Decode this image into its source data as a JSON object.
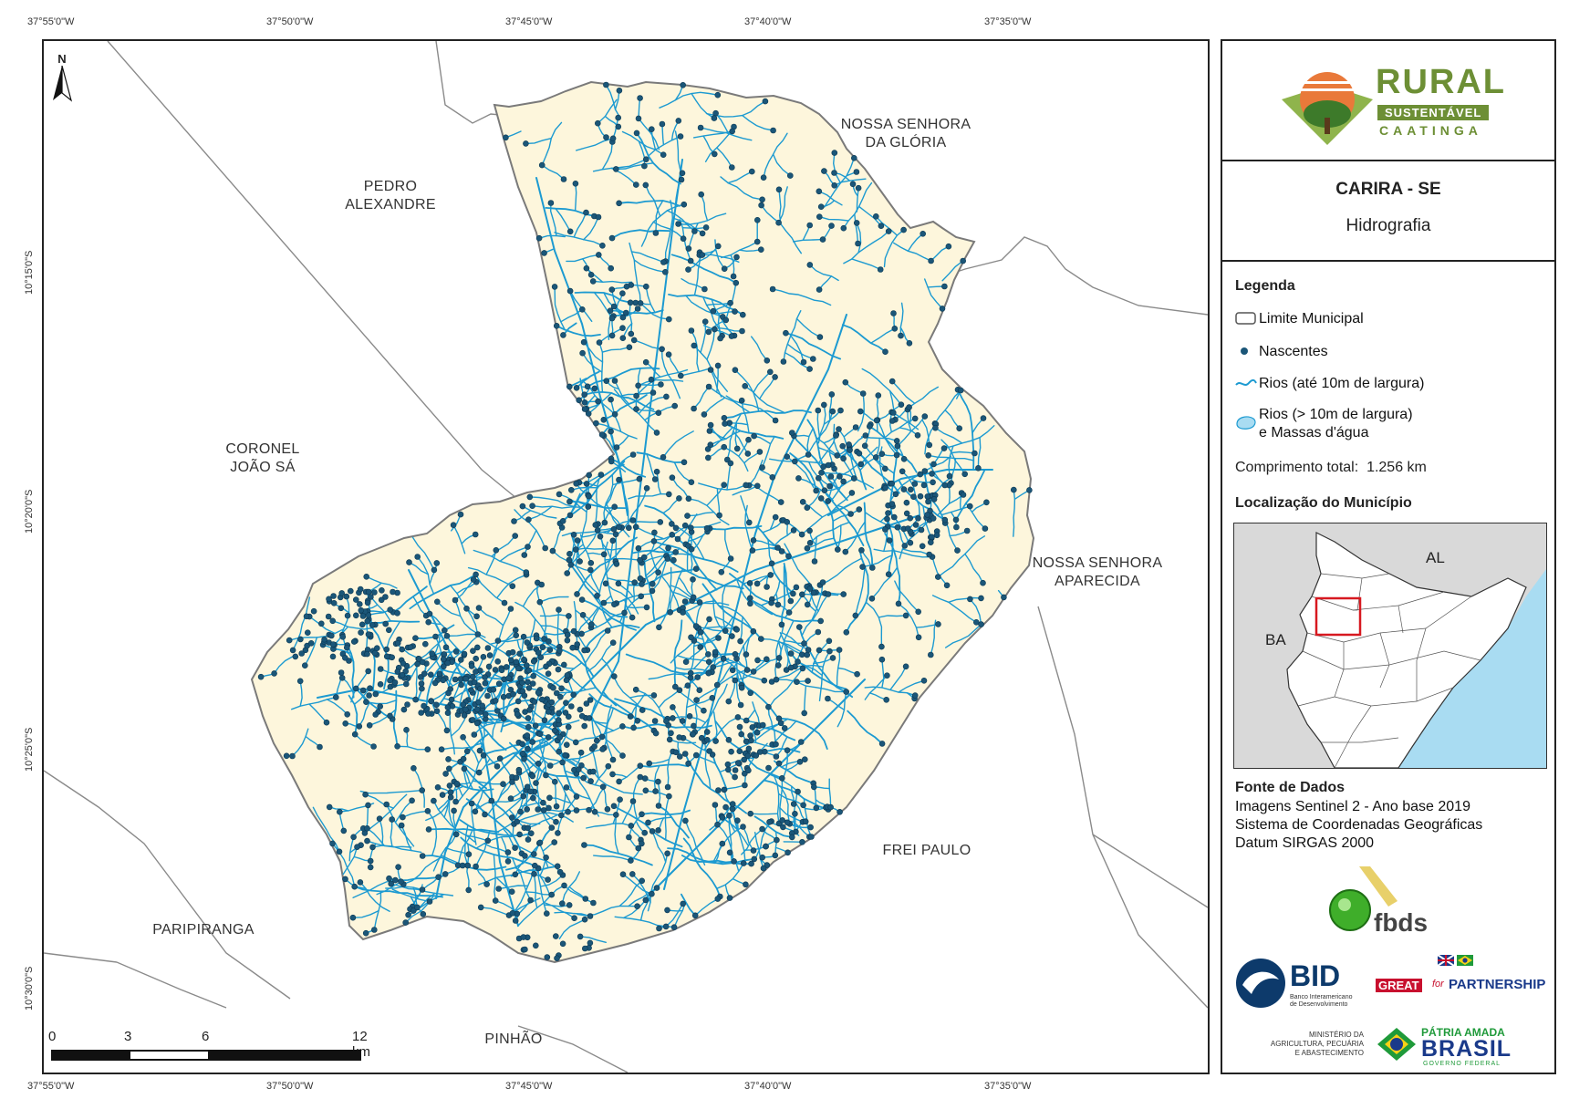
{
  "coords": {
    "top": [
      "37°55'0\"W",
      "37°50'0\"W",
      "37°45'0\"W",
      "37°40'0\"W",
      "37°35'0\"W"
    ],
    "bottom": [
      "37°55'0\"W",
      "37°50'0\"W",
      "37°45'0\"W",
      "37°40'0\"W",
      "37°35'0\"W"
    ],
    "left": [
      "10°15'0\"S",
      "10°20'0\"S",
      "10°25'0\"S",
      "10°30'0\"S"
    ]
  },
  "map": {
    "north_label": "N",
    "neighbors": {
      "nossa_senhora_gloria": [
        "NOSSA SENHORA",
        "DA GLÓRIA"
      ],
      "pedro_alexandre": [
        "PEDRO",
        "ALEXANDRE"
      ],
      "coronel_joao_sa": [
        "CORONEL",
        "JOÃO SÁ"
      ],
      "nossa_senhora_aparecida": [
        "NOSSA SENHORA",
        "APARECIDA"
      ],
      "frei_paulo": "FREI PAULO",
      "paripiranga": "PARIPIRANGA",
      "pinhao": "PINHÃO"
    },
    "scale": {
      "ticks": [
        "0",
        "3",
        "6",
        "12 km"
      ]
    },
    "colors": {
      "municipality_fill": "#fdf6dc",
      "river": "#1c9ad1",
      "spring": "#1b5678",
      "boundary": "#7a7a7a"
    }
  },
  "panel": {
    "logo": {
      "line1": "RURAL",
      "line2": "SUSTENTÁVEL",
      "line3": "CAATINGA"
    },
    "title": "CARIRA - SE",
    "subtitle": "Hidrografia",
    "legend_title": "Legenda",
    "legend": [
      {
        "icon": "polygon-outline-icon",
        "label": "Limite Municipal"
      },
      {
        "icon": "dot-icon",
        "label": "Nascentes"
      },
      {
        "icon": "river-line-icon",
        "label": "Rios (até 10m de largura)"
      },
      {
        "icon": "water-body-icon",
        "label": "Rios (> 10m de largura)",
        "label2": "e Massas d'água"
      }
    ],
    "length_label": "Comprimento total:",
    "length_value": "1.256 km",
    "location_title": "Localização do Município",
    "inset": {
      "al": "AL",
      "ba": "BA"
    },
    "sources_title": "Fonte de Dados",
    "sources": [
      "Imagens Sentinel 2 - Ano base 2019",
      "Sistema de Coordenadas Geográficas",
      "Datum SIRGAS 2000"
    ],
    "logos": {
      "fbds": "fbds",
      "bid": "BID",
      "bid_sub1": "Banco Interamericano",
      "bid_sub2": "de Desenvolvimento",
      "great": "GREAT",
      "great_for": "for",
      "partnership": "PARTNERSHIP",
      "ministerio1": "MINISTÉRIO DA",
      "ministerio2": "AGRICULTURA, PECUÁRIA",
      "ministerio3": "E ABASTECIMENTO",
      "patria": "PÁTRIA AMADA",
      "brasil": "BRASIL",
      "governo": "GOVERNO FEDERAL"
    }
  }
}
